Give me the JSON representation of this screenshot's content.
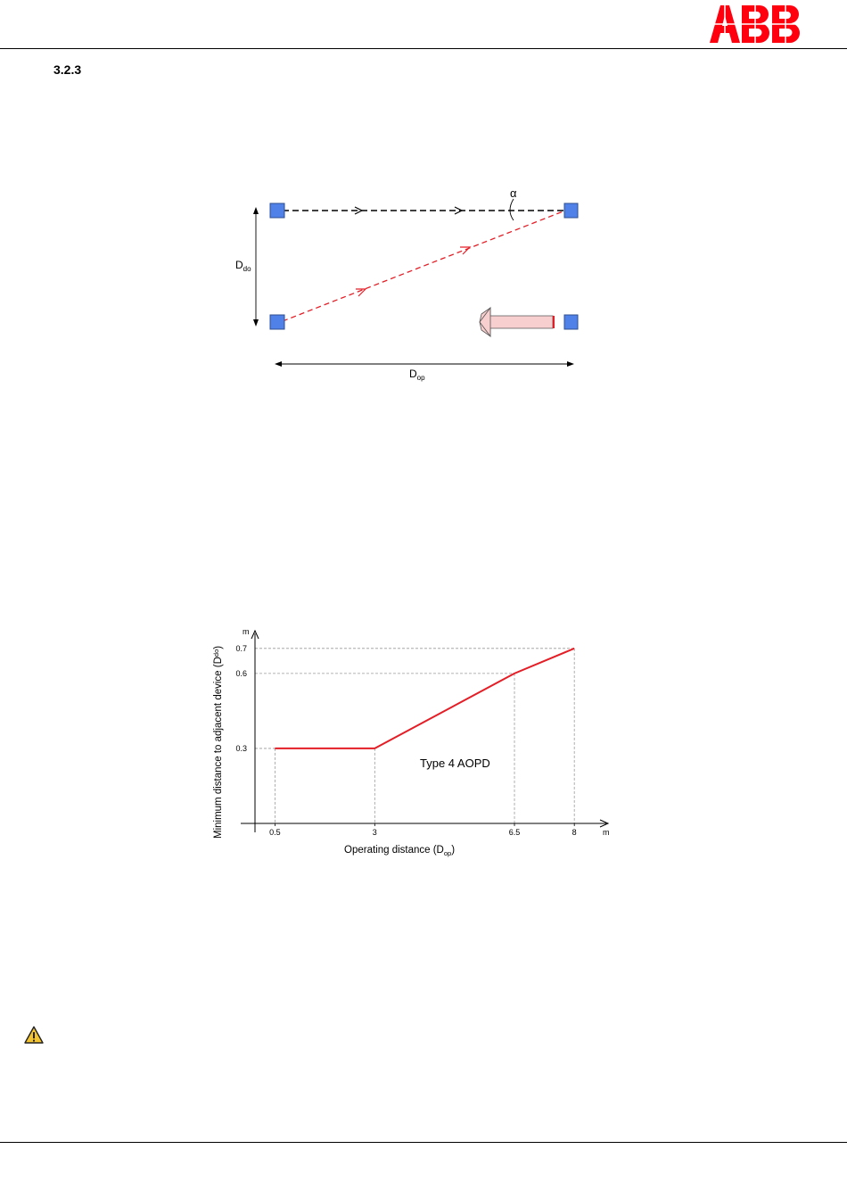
{
  "header": {
    "brand": "ABB"
  },
  "section": {
    "number": "3.2.3"
  },
  "diagram": {
    "alpha_symbol": "α",
    "ddo_label": {
      "main": "D",
      "sub": "do"
    },
    "dop_label": {
      "main": "D",
      "sub": "op"
    }
  },
  "icons": {
    "warning": "warning-triangle-icon"
  },
  "colors": {
    "brand_red": "#ff000f",
    "device_blue": "#4f81e8",
    "line_red": "#e41e26",
    "arrow_pink": "#f8cfcf"
  },
  "chart_data": {
    "type": "line",
    "x": [
      0.5,
      3,
      6.5,
      8
    ],
    "series": [
      {
        "name": "",
        "values": [
          0.3,
          0.3,
          0.6,
          0.7
        ]
      }
    ],
    "annotation": "Type 4 AOPD",
    "xlabel": {
      "main": "Operating distance (D",
      "sub": "op",
      "end": ")"
    },
    "ylabel": {
      "main": "Minimum distance to adjacent device (D",
      "sub": "do",
      "end": ")"
    },
    "x_unit": "m",
    "y_unit": "m",
    "x_ticks": [
      "0.5",
      "3",
      "6.5",
      "8"
    ],
    "y_ticks": [
      "0.3",
      "0.6",
      "0.7"
    ],
    "xlim": [
      0,
      8.8
    ],
    "ylim": [
      0,
      0.76
    ],
    "grid": "dashed guide lines at points"
  }
}
